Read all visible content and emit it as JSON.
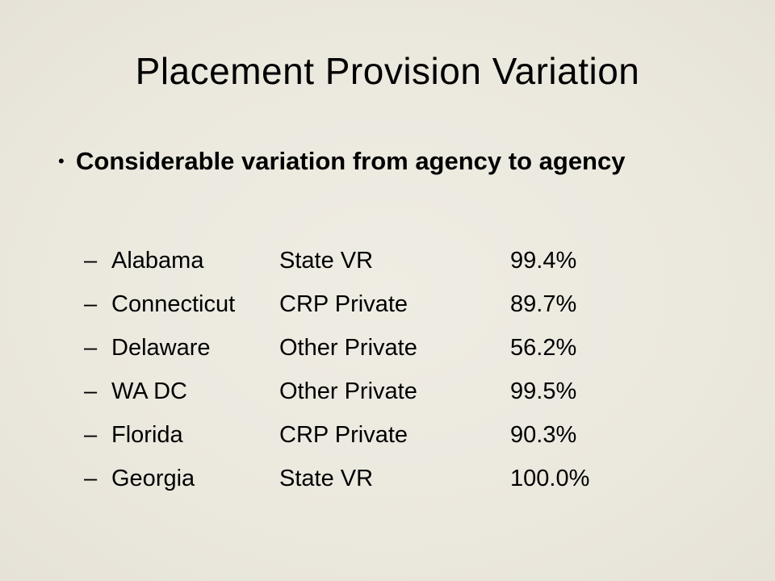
{
  "slide": {
    "title": "Placement Provision Variation",
    "bullet": {
      "symbol": "•",
      "text": "Considerable variation from agency to agency"
    },
    "sub_bullet_symbol": "–",
    "rows": [
      {
        "state": "Alabama",
        "provider": "State VR",
        "percent": "99.4%"
      },
      {
        "state": "Connecticut",
        "provider": "CRP Private",
        "percent": "89.7%"
      },
      {
        "state": "Delaware",
        "provider": "Other Private",
        "percent": "56.2%"
      },
      {
        "state": "WA DC",
        "provider": "Other Private",
        "percent": "99.5%"
      },
      {
        "state": "Florida",
        "provider": "CRP Private",
        "percent": "90.3%"
      },
      {
        "state": "Georgia",
        "provider": "State VR",
        "percent": "100.0%"
      }
    ]
  }
}
